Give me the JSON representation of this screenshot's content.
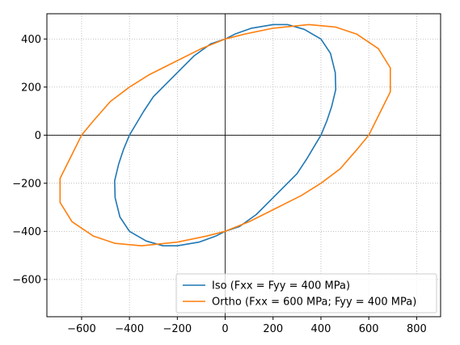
{
  "chart_data": {
    "type": "line",
    "title": "",
    "xlabel": "",
    "ylabel": "",
    "xlim": [
      -745,
      900
    ],
    "ylim": [
      -755,
      505
    ],
    "xticks": [
      -600,
      -400,
      -200,
      0,
      200,
      400,
      600,
      800
    ],
    "yticks": [
      -600,
      -400,
      -200,
      0,
      200,
      400
    ],
    "x_tick_labels": [
      "−600",
      "−400",
      "−200",
      "0",
      "200",
      "400",
      "600",
      "800"
    ],
    "y_tick_labels": [
      "−600",
      "−400",
      "−200",
      "0",
      "200",
      "400"
    ],
    "grid": true,
    "origin_axes": true,
    "legend_position": "lower-right",
    "series": [
      {
        "name": "Iso (Fxx = Fyy = 400 MPa)",
        "color": "#1f77b4",
        "x": [
          0,
          40,
          110,
          200,
          260,
          330,
          400,
          440,
          460,
          462,
          445,
          425,
          400,
          370,
          340,
          300,
          250,
          200,
          130,
          60,
          0,
          -40,
          -110,
          -200,
          -260,
          -330,
          -400,
          -440,
          -460,
          -462,
          -445,
          -425,
          -400,
          -370,
          -340,
          -300,
          -250,
          -200,
          -130,
          -60,
          0
        ],
        "y": [
          400,
          420,
          445,
          460,
          460,
          440,
          400,
          340,
          260,
          190,
          120,
          60,
          0,
          -50,
          -100,
          -160,
          -210,
          -260,
          -330,
          -380,
          -400,
          -420,
          -445,
          -460,
          -460,
          -440,
          -400,
          -340,
          -260,
          -190,
          -120,
          -60,
          0,
          50,
          100,
          160,
          210,
          260,
          330,
          380,
          400
        ]
      },
      {
        "name": "Ortho (Fxx = 600 MPa; Fyy = 400 MPa)",
        "color": "#ff7f0e",
        "x": [
          0,
          80,
          200,
          350,
          460,
          550,
          640,
          690,
          690,
          640,
          600,
          550,
          480,
          400,
          320,
          220,
          100,
          0,
          -80,
          -200,
          -350,
          -460,
          -550,
          -640,
          -690,
          -690,
          -640,
          -600,
          -550,
          -480,
          -400,
          -320,
          -220,
          -100,
          0
        ],
        "y": [
          400,
          420,
          445,
          460,
          450,
          420,
          360,
          280,
          180,
          80,
          0,
          -60,
          -140,
          -200,
          -250,
          -300,
          -360,
          -400,
          -420,
          -445,
          -460,
          -450,
          -420,
          -360,
          -280,
          -180,
          -80,
          0,
          60,
          140,
          200,
          250,
          300,
          360,
          400
        ]
      }
    ]
  }
}
